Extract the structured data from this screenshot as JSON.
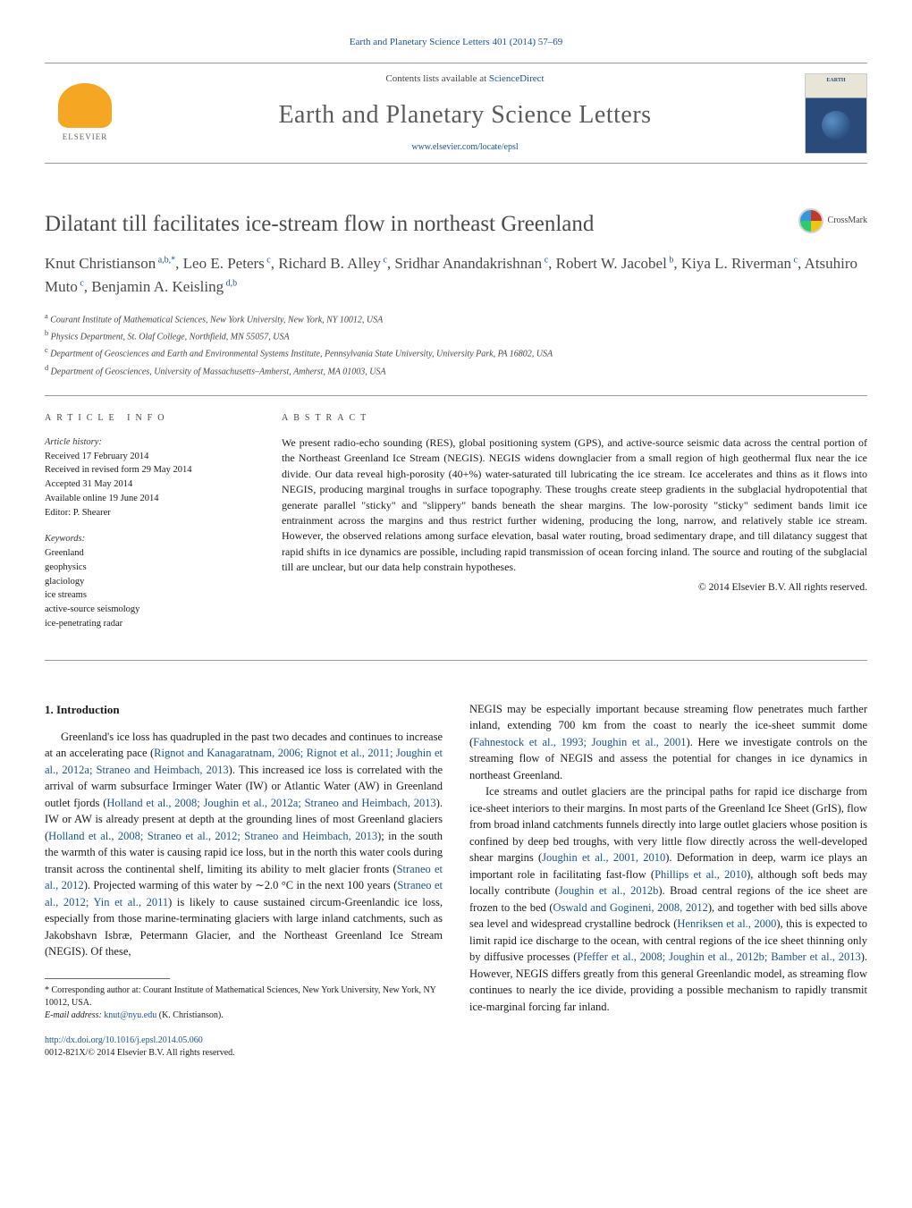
{
  "top_citation": {
    "journal_link_text": "Earth and Planetary Science Letters 401 (2014) 57–69",
    "journal_color": "#1a5490"
  },
  "header": {
    "contents_prefix": "Contents lists available at ",
    "contents_link": "ScienceDirect",
    "journal_title": "Earth and Planetary Science Letters",
    "homepage_url": "www.elsevier.com/locate/epsl",
    "publisher_label": "ELSEVIER",
    "cover_label": "EARTH"
  },
  "crossmark_label": "CrossMark",
  "article": {
    "title": "Dilatant till facilitates ice-stream flow in northeast Greenland"
  },
  "authors_html": "Knut Christianson<sup> a,b,*</sup>, Leo E. Peters<sup> c</sup>, Richard B. Alley<sup> c</sup>, Sridhar Anandakrishnan<sup> c</sup>, Robert W. Jacobel<sup> b</sup>, Kiya L. Riverman<sup> c</sup>, Atsuhiro Muto<sup> c</sup>, Benjamin A. Keisling<sup> d,b</sup>",
  "affiliations": [
    {
      "sup": "a",
      "text": "Courant Institute of Mathematical Sciences, New York University, New York, NY 10012, USA"
    },
    {
      "sup": "b",
      "text": "Physics Department, St. Olaf College, Northfield, MN 55057, USA"
    },
    {
      "sup": "c",
      "text": "Department of Geosciences and Earth and Environmental Systems Institute, Pennsylvania State University, University Park, PA 16802, USA"
    },
    {
      "sup": "d",
      "text": "Department of Geosciences, University of Massachusetts–Amherst, Amherst, MA 01003, USA"
    }
  ],
  "info": {
    "label": "ARTICLE INFO",
    "history_label": "Article history:",
    "history": [
      "Received 17 February 2014",
      "Received in revised form 29 May 2014",
      "Accepted 31 May 2014",
      "Available online 19 June 2014",
      "Editor: P. Shearer"
    ],
    "keywords_label": "Keywords:",
    "keywords": [
      "Greenland",
      "geophysics",
      "glaciology",
      "ice streams",
      "active-source seismology",
      "ice-penetrating radar"
    ]
  },
  "abstract": {
    "label": "ABSTRACT",
    "text": "We present radio-echo sounding (RES), global positioning system (GPS), and active-source seismic data across the central portion of the Northeast Greenland Ice Stream (NEGIS). NEGIS widens downglacier from a small region of high geothermal flux near the ice divide. Our data reveal high-porosity (40+%) water-saturated till lubricating the ice stream. Ice accelerates and thins as it flows into NEGIS, producing marginal troughs in surface topography. These troughs create steep gradients in the subglacial hydropotential that generate parallel \"sticky\" and \"slippery\" bands beneath the shear margins. The low-porosity \"sticky\" sediment bands limit ice entrainment across the margins and thus restrict further widening, producing the long, narrow, and relatively stable ice stream. However, the observed relations among surface elevation, basal water routing, broad sedimentary drape, and till dilatancy suggest that rapid shifts in ice dynamics are possible, including rapid transmission of ocean forcing inland. The source and routing of the subglacial till are unclear, but our data help constrain hypotheses.",
    "copyright": "© 2014 Elsevier B.V. All rights reserved."
  },
  "intro": {
    "heading": "1. Introduction",
    "col1_p1_pre": "Greenland's ice loss has quadrupled in the past two decades and continues to increase at an accelerating pace (",
    "col1_ref1": "Rignot and Kanagaratnam, 2006; Rignot et al., 2011; Joughin et al., 2012a; Straneo and Heimbach, 2013",
    "col1_p1_mid1": "). This increased ice loss is correlated with the arrival of warm subsurface Irminger Water (IW) or Atlantic Water (AW) in Greenland outlet fjords (",
    "col1_ref2": "Holland et al., 2008; Joughin et al., 2012a; Straneo and Heimbach, 2013",
    "col1_p1_mid2": "). IW or AW is already present at depth at the grounding lines of most Greenland glaciers (",
    "col1_ref3": "Holland et al., 2008; Straneo et al., 2012; Straneo and Heimbach, 2013",
    "col1_p1_mid3": "); in the south the warmth of this water is causing rapid ice loss, but in the north this water cools during transit across the continental shelf, limiting its ability to melt glacier fronts (",
    "col1_ref4": "Straneo et al., 2012",
    "col1_p1_mid4": "). Projected warming of this water by ∼2.0 °C in the next 100 years (",
    "col1_ref5": "Straneo et al., 2012; Yin et al., 2011",
    "col1_p1_post": ") is likely to cause sustained circum-Greenlandic ice loss, especially from those marine-terminating glaciers with large inland catchments, such as Jakobshavn Isbræ, Petermann Glacier, and the Northeast Greenland Ice Stream (NEGIS). Of these,",
    "col2_p1_pre": "NEGIS may be especially important because streaming flow penetrates much farther inland, extending 700 km from the coast to nearly the ice-sheet summit dome (",
    "col2_ref1": "Fahnestock et al., 1993; Joughin et al., 2001",
    "col2_p1_post": "). Here we investigate controls on the streaming flow of NEGIS and assess the potential for changes in ice dynamics in northeast Greenland.",
    "col2_p2_pre": "Ice streams and outlet glaciers are the principal paths for rapid ice discharge from ice-sheet interiors to their margins. In most parts of the Greenland Ice Sheet (GrIS), flow from broad inland catchments funnels directly into large outlet glaciers whose position is confined by deep bed troughs, with very little flow directly across the well-developed shear margins (",
    "col2_ref2": "Joughin et al., 2001, 2010",
    "col2_p2_mid1": "). Deformation in deep, warm ice plays an important role in facilitating fast-flow (",
    "col2_ref3": "Phillips et al., 2010",
    "col2_p2_mid2": "), although soft beds may locally contribute (",
    "col2_ref4": "Joughin et al., 2012b",
    "col2_p2_mid3": "). Broad central regions of the ice sheet are frozen to the bed (",
    "col2_ref5": "Oswald and Gogineni, 2008, 2012",
    "col2_p2_mid4": "), and together with bed sills above sea level and widespread crystalline bedrock (",
    "col2_ref6": "Henriksen et al., 2000",
    "col2_p2_mid5": "), this is expected to limit rapid ice discharge to the ocean, with central regions of the ice sheet thinning only by diffusive processes (",
    "col2_ref7": "Pfeffer et al., 2008; Joughin et al., 2012b; Bamber et al., 2013",
    "col2_p2_post": "). However, NEGIS differs greatly from this general Greenlandic model, as streaming flow continues to nearly the ice divide, providing a possible mechanism to rapidly transmit ice-marginal forcing far inland."
  },
  "footnote": {
    "corr_label": "*",
    "corr_text": "Corresponding author at: Courant Institute of Mathematical Sciences, New York University, New York, NY 10012, USA.",
    "email_label": "E-mail address: ",
    "email": "knut@nyu.edu",
    "email_suffix": " (K. Christianson)."
  },
  "footer": {
    "doi": "http://dx.doi.org/10.1016/j.epsl.2014.05.060",
    "issn_line": "0012-821X/© 2014 Elsevier B.V. All rights reserved."
  },
  "colors": {
    "link": "#1a5490",
    "title_gray": "#4a4a4a",
    "text": "#1a1a1a"
  }
}
